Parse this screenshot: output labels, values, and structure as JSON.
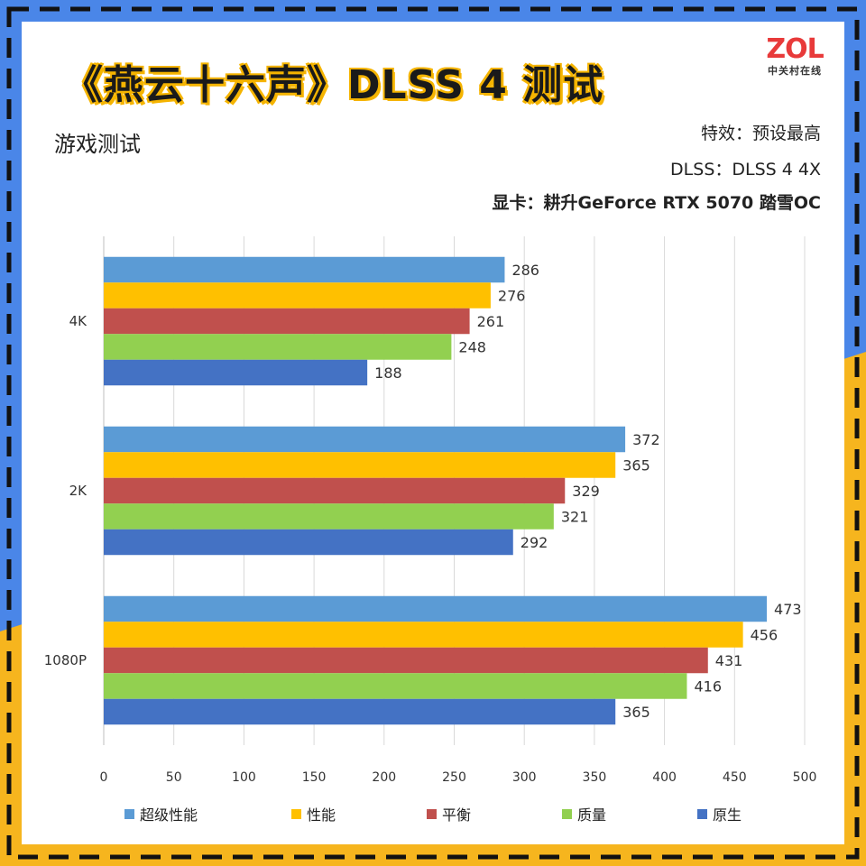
{
  "header": {
    "title": "《燕云十六声》DLSS 4 测试",
    "subtitle": "游戏测试",
    "info": [
      "特效：预设最高",
      "DLSS：DLSS 4 4X",
      "显卡：耕升GeForce RTX 5070 踏雪OC"
    ]
  },
  "logo": {
    "main": "ZOL",
    "sub": "中关村在线",
    "main_color": "#e83a3a"
  },
  "colors": {
    "border_blue": "#4a86e8",
    "border_yellow": "#f6b51e",
    "dash": "#111111"
  },
  "chart_data": {
    "type": "bar",
    "orientation": "horizontal",
    "categories": [
      "4K",
      "2K",
      "1080P"
    ],
    "series": [
      {
        "name": "超级性能",
        "values": [
          286,
          372,
          473
        ],
        "color": "#5b9bd5"
      },
      {
        "name": "性能",
        "values": [
          276,
          365,
          456
        ],
        "color": "#ffc000"
      },
      {
        "name": "平衡",
        "values": [
          261,
          329,
          431
        ],
        "color": "#c0504d"
      },
      {
        "name": "质量",
        "values": [
          248,
          321,
          416
        ],
        "color": "#92d050"
      },
      {
        "name": "原生",
        "values": [
          188,
          292,
          365
        ],
        "color": "#4472c4"
      }
    ],
    "xlim": [
      0,
      500
    ],
    "xticks": [
      0,
      50,
      100,
      150,
      200,
      250,
      300,
      350,
      400,
      450,
      500
    ],
    "grid": true,
    "legend": "bottom",
    "data_labels": true
  }
}
